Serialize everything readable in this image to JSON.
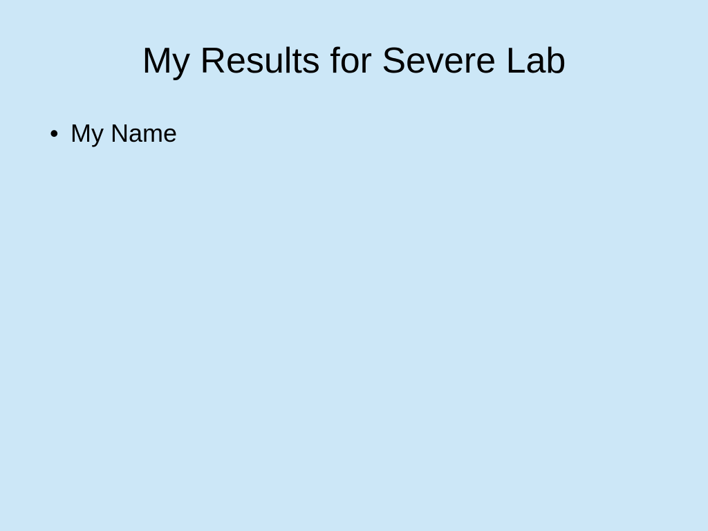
{
  "slide": {
    "title": "My Results for Severe Lab",
    "bullets": [
      "My Name"
    ],
    "background_color": "#cce7f7",
    "text_color": "#000000",
    "title_fontsize": 52,
    "bullet_fontsize": 36,
    "font_family": "Arial, Helvetica, sans-serif"
  }
}
